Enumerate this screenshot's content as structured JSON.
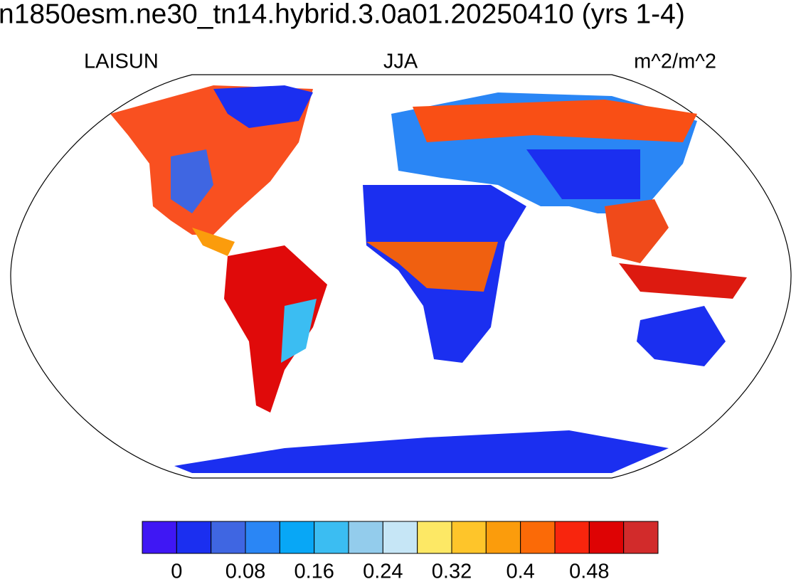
{
  "title": "n1850esm.ne30_tn14.hybrid.3.0a01.20250410 (yrs 1-4)",
  "subtitle_left": "LAISUN",
  "subtitle_center": "JJA",
  "subtitle_right": "m^2/m^2",
  "colorbar": {
    "colors": [
      "#3f17f4",
      "#1b2ff0",
      "#3f66e2",
      "#2a86f5",
      "#08a7f6",
      "#3bbdf2",
      "#93ccec",
      "#c6e6f6",
      "#fde865",
      "#fec52a",
      "#fb9c0c",
      "#fb6a07",
      "#f8250d",
      "#de0304",
      "#d22b2b"
    ],
    "levels": [
      0,
      0.04,
      0.08,
      0.12,
      0.16,
      0.2,
      0.24,
      0.28,
      0.32,
      0.36,
      0.4,
      0.44,
      0.48,
      0.52
    ],
    "ticks": [
      0,
      0.08,
      0.16,
      0.24,
      0.32,
      0.4,
      0.48
    ]
  }
}
